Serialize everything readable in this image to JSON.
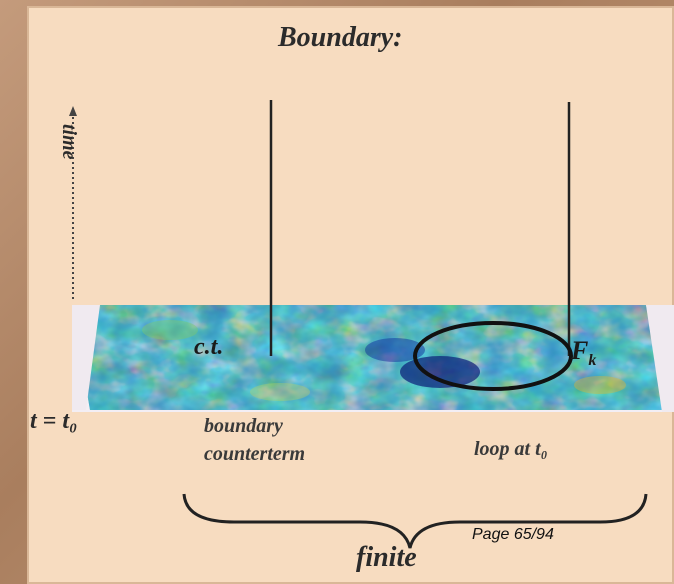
{
  "slide": {
    "title": "Boundary:",
    "time_axis_label": "time",
    "boundary_time_label": "t = t₀",
    "counterterm_short": "c.t.",
    "field_label": "F",
    "field_subscript": "k",
    "boundary_counterterm_line1": "boundary",
    "boundary_counterterm_line2": "counterterm",
    "loop_label": "loop at t₀",
    "finite_label": "finite"
  },
  "page_number": "Page 65/94"
}
